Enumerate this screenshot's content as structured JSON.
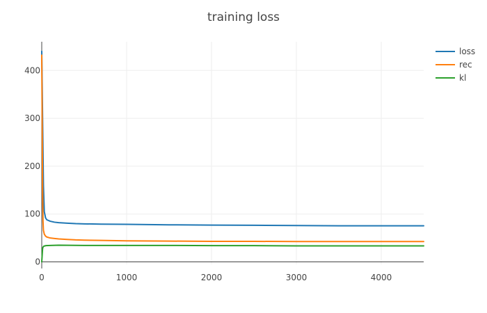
{
  "chart_data": {
    "type": "line",
    "title": "training loss",
    "xlabel": "",
    "ylabel": "",
    "xlim": [
      0,
      4500
    ],
    "ylim": [
      -5,
      460
    ],
    "grid": true,
    "legend_position": "top-right",
    "x_ticks": [
      0,
      1000,
      2000,
      3000,
      4000
    ],
    "y_ticks": [
      0,
      100,
      200,
      300,
      400
    ],
    "series": [
      {
        "name": "loss",
        "color": "#1f77b4",
        "points": [
          [
            0,
            440
          ],
          [
            10,
            300
          ],
          [
            20,
            160
          ],
          [
            30,
            105
          ],
          [
            45,
            92
          ],
          [
            60,
            88
          ],
          [
            100,
            85
          ],
          [
            150,
            83
          ],
          [
            200,
            82
          ],
          [
            300,
            81
          ],
          [
            400,
            80
          ],
          [
            500,
            79.5
          ],
          [
            700,
            79
          ],
          [
            1000,
            78.5
          ],
          [
            1500,
            77.5
          ],
          [
            2000,
            77
          ],
          [
            2500,
            76.5
          ],
          [
            3000,
            76
          ],
          [
            3500,
            75.5
          ],
          [
            4000,
            75.5
          ],
          [
            4500,
            75.5
          ]
        ]
      },
      {
        "name": "rec",
        "color": "#ff7f0e",
        "points": [
          [
            0,
            432
          ],
          [
            5,
            300
          ],
          [
            10,
            150
          ],
          [
            15,
            85
          ],
          [
            20,
            66
          ],
          [
            30,
            58
          ],
          [
            45,
            54
          ],
          [
            60,
            52
          ],
          [
            100,
            50
          ],
          [
            150,
            49
          ],
          [
            200,
            48
          ],
          [
            300,
            47
          ],
          [
            400,
            46
          ],
          [
            500,
            45.5
          ],
          [
            700,
            45
          ],
          [
            1000,
            44
          ],
          [
            1500,
            43.5
          ],
          [
            2000,
            43
          ],
          [
            2500,
            43
          ],
          [
            3000,
            42.5
          ],
          [
            3500,
            42.5
          ],
          [
            4000,
            42.5
          ],
          [
            4500,
            42.5
          ]
        ]
      },
      {
        "name": "kl",
        "color": "#2ca02c",
        "points": [
          [
            0,
            0
          ],
          [
            5,
            14
          ],
          [
            10,
            28
          ],
          [
            15,
            31
          ],
          [
            25,
            33
          ],
          [
            50,
            34
          ],
          [
            100,
            34.5
          ],
          [
            200,
            35
          ],
          [
            500,
            34.5
          ],
          [
            1000,
            34.5
          ],
          [
            1500,
            34.5
          ],
          [
            2000,
            34
          ],
          [
            2500,
            34
          ],
          [
            3000,
            33.5
          ],
          [
            3500,
            33.5
          ],
          [
            4000,
            33.5
          ],
          [
            4500,
            33.5
          ]
        ]
      }
    ]
  }
}
